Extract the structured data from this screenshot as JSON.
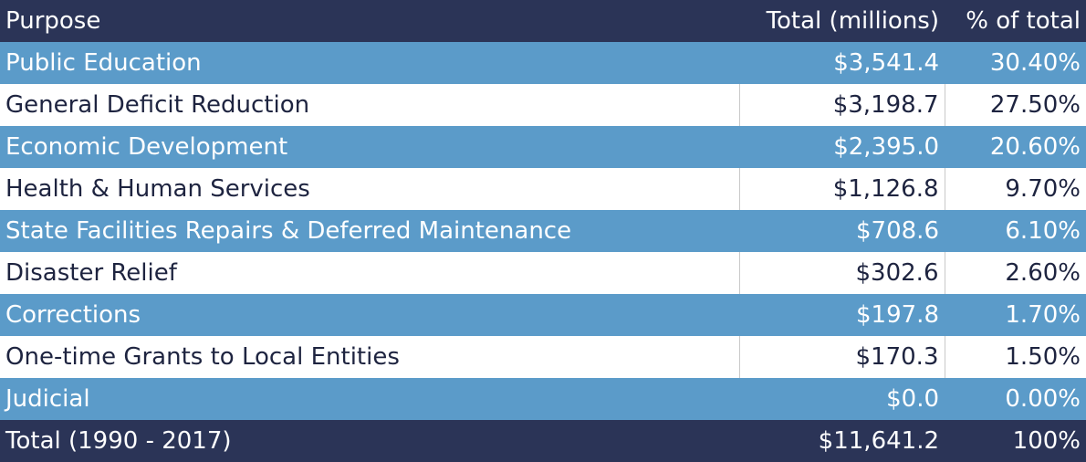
{
  "table": {
    "header": [
      "Purpose",
      "Total (millions)",
      "% of total"
    ],
    "rows": [
      [
        "Public Education",
        "$3,541.4",
        "30.40%"
      ],
      [
        "General Deficit Reduction",
        "$3,198.7",
        "27.50%"
      ],
      [
        "Economic Development",
        "$2,395.0",
        "20.60%"
      ],
      [
        "Health & Human Services",
        "$1,126.8",
        "9.70%"
      ],
      [
        "State Facilities Repairs & Deferred Maintenance",
        "$708.6",
        "6.10%"
      ],
      [
        "Disaster Relief",
        "$302.6",
        "2.60%"
      ],
      [
        "Corrections",
        "$197.8",
        "1.70%"
      ],
      [
        "One-time Grants to Local Entities",
        "$170.3",
        "1.50%"
      ],
      [
        "Judicial",
        "$0.0",
        "0.00%"
      ]
    ],
    "footer": [
      "Total (1990 - 2017)",
      "$11,641.2",
      "100%"
    ]
  }
}
